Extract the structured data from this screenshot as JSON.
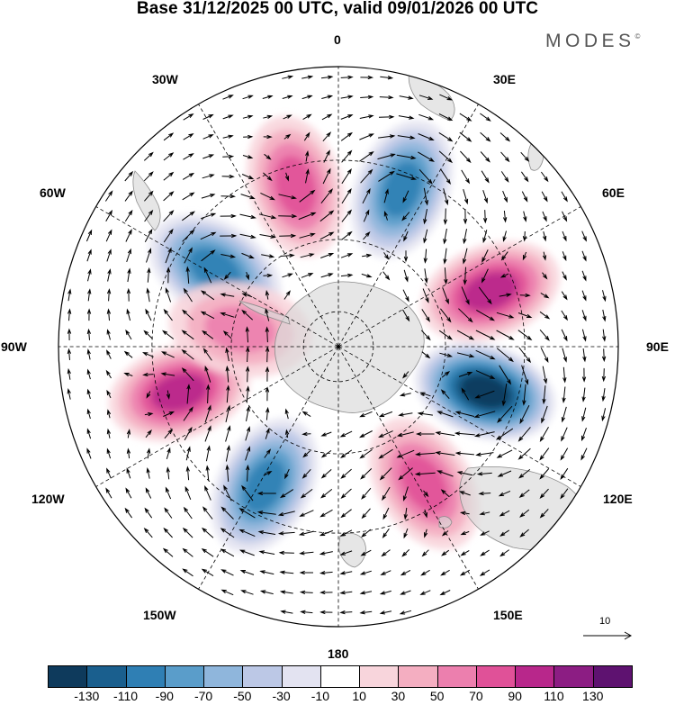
{
  "title": "Base 31/12/2025 00 UTC, valid 09/01/2026 00 UTC",
  "brand": {
    "name": "MODES",
    "mark": "©"
  },
  "longitude_labels": {
    "lon_0": "0",
    "lon_30e": "30E",
    "lon_60e": "60E",
    "lon_90e": "90E",
    "lon_120e": "120E",
    "lon_150e": "150E",
    "lon_180": "180",
    "lon_150w": "150W",
    "lon_120w": "120W",
    "lon_90w": "90W",
    "lon_60w": "60W",
    "lon_30w": "30W"
  },
  "reference_vector": {
    "value": "10"
  },
  "colorbar": {
    "ticks": [
      "-130",
      "-110",
      "-90",
      "-70",
      "-50",
      "-30",
      "-10",
      "10",
      "30",
      "50",
      "70",
      "90",
      "110",
      "130"
    ],
    "colors": [
      "#0e3a5c",
      "#1a5f8e",
      "#2f7fb4",
      "#5a9dca",
      "#8fb6dc",
      "#bcc8e6",
      "#e3e3f1",
      "#ffffff",
      "#f8d5dc",
      "#f4aec1",
      "#ec7fae",
      "#e05198",
      "#b8278b",
      "#8c1d83",
      "#5e1270"
    ]
  },
  "anomalies": [
    {
      "lat": -45,
      "lon": -15,
      "value": 75
    },
    {
      "lat": -44,
      "lon": 22,
      "value": -95
    },
    {
      "lat": -46,
      "lon": 70,
      "value": 80
    },
    {
      "lat": -48,
      "lon": 107,
      "value": -130
    },
    {
      "lat": -46,
      "lon": 148,
      "value": 75
    },
    {
      "lat": -47,
      "lon": -152,
      "value": -80
    },
    {
      "lat": -45,
      "lon": -106,
      "value": 85
    },
    {
      "lat": -50,
      "lon": -58,
      "value": -80
    },
    {
      "lat": -62,
      "lon": -80,
      "value": 45
    }
  ]
}
